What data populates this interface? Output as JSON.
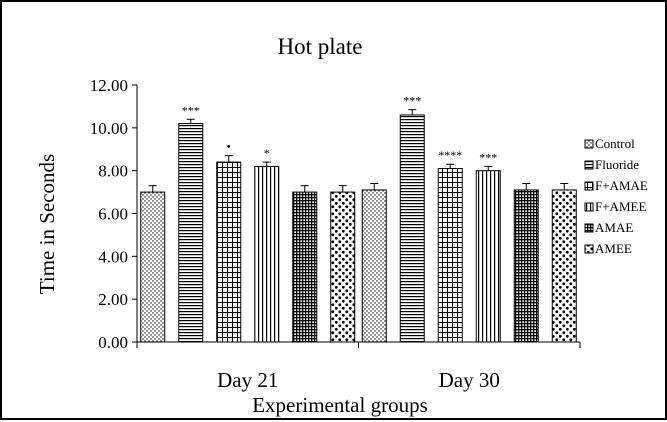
{
  "chart_data": {
    "type": "bar",
    "title": "Hot plate",
    "xlabel": "Experimental groups",
    "ylabel": "Time in Seconds",
    "ylim": [
      0,
      12
    ],
    "yticks": [
      "0.00",
      "2.00",
      "4.00",
      "6.00",
      "8.00",
      "10.00",
      "12.00"
    ],
    "grid": false,
    "legend_position": "right",
    "categories": [
      "Day 21",
      "Day 30"
    ],
    "series": [
      {
        "name": "Control",
        "pattern": "dots",
        "values": [
          7.0,
          7.1
        ],
        "errors": [
          0.3,
          0.3
        ],
        "annotations": [
          "",
          ""
        ]
      },
      {
        "name": "Fluoride",
        "pattern": "hlines",
        "values": [
          10.2,
          10.6
        ],
        "errors": [
          0.2,
          0.25
        ],
        "annotations": [
          "***",
          "***"
        ]
      },
      {
        "name": "F+AMAE",
        "pattern": "grid",
        "values": [
          8.4,
          8.1
        ],
        "errors": [
          0.3,
          0.2
        ],
        "annotations": [
          "•",
          "****"
        ]
      },
      {
        "name": "F+AMEE",
        "pattern": "vlines",
        "values": [
          8.2,
          8.0
        ],
        "errors": [
          0.2,
          0.2
        ],
        "annotations": [
          "*",
          "***"
        ]
      },
      {
        "name": "AMAE",
        "pattern": "dense-grid",
        "values": [
          7.0,
          7.1
        ],
        "errors": [
          0.3,
          0.3
        ],
        "annotations": [
          "",
          ""
        ]
      },
      {
        "name": "AMEE",
        "pattern": "bigdots",
        "values": [
          7.0,
          7.1
        ],
        "errors": [
          0.3,
          0.3
        ],
        "annotations": [
          "",
          ""
        ]
      }
    ]
  }
}
